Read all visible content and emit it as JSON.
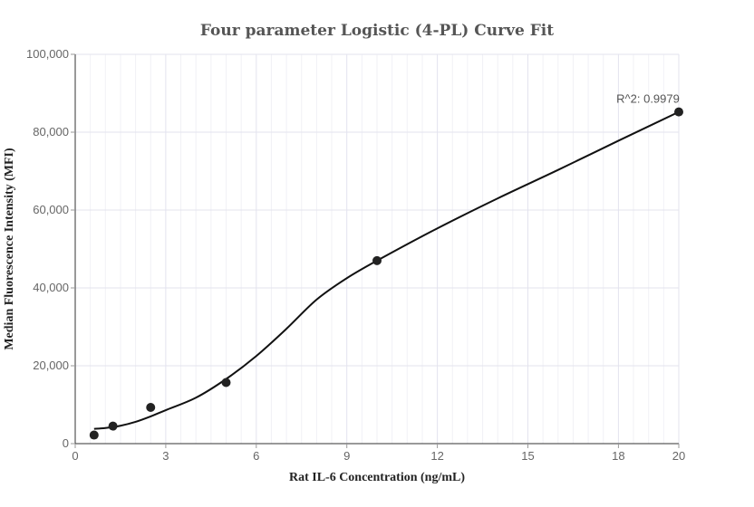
{
  "chart_data": {
    "type": "scatter",
    "title": "Four parameter Logistic (4-PL) Curve Fit",
    "xlabel": "Rat IL-6 Concentration (ng/mL)",
    "ylabel": "Median Fluorescence Intensity (MFI)",
    "xlim": [
      0,
      20
    ],
    "ylim": [
      0,
      100000
    ],
    "x_ticks": [
      0,
      3,
      6,
      9,
      12,
      15,
      18,
      20
    ],
    "x_tick_labels": [
      "0",
      "3",
      "6",
      "9",
      "12",
      "15",
      "18",
      "20"
    ],
    "y_ticks": [
      0,
      20000,
      40000,
      60000,
      80000,
      100000
    ],
    "y_tick_labels": [
      "0",
      "20,000",
      "40,000",
      "60,000",
      "80,000",
      "100,000"
    ],
    "grid": true,
    "series": [
      {
        "type": "scatter",
        "x": [
          0.625,
          1.25,
          2.5,
          5,
          10,
          20
        ],
        "y": [
          2200,
          4500,
          9300,
          15700,
          47000,
          85200
        ],
        "color": "#222222"
      },
      {
        "type": "line",
        "x": [
          0.625,
          1,
          1.5,
          2,
          2.5,
          3,
          4,
          5,
          6,
          7,
          8,
          9,
          10,
          12,
          14,
          16,
          18,
          20
        ],
        "y": [
          3800,
          4000,
          4600,
          5600,
          7000,
          8600,
          11800,
          16600,
          22500,
          29500,
          37000,
          42500,
          47000,
          55300,
          63000,
          70300,
          77800,
          85200
        ],
        "color": "#111111"
      }
    ],
    "annotations": [
      {
        "text": "R^2: 0.9979",
        "x": 20,
        "y": 85200
      }
    ]
  }
}
